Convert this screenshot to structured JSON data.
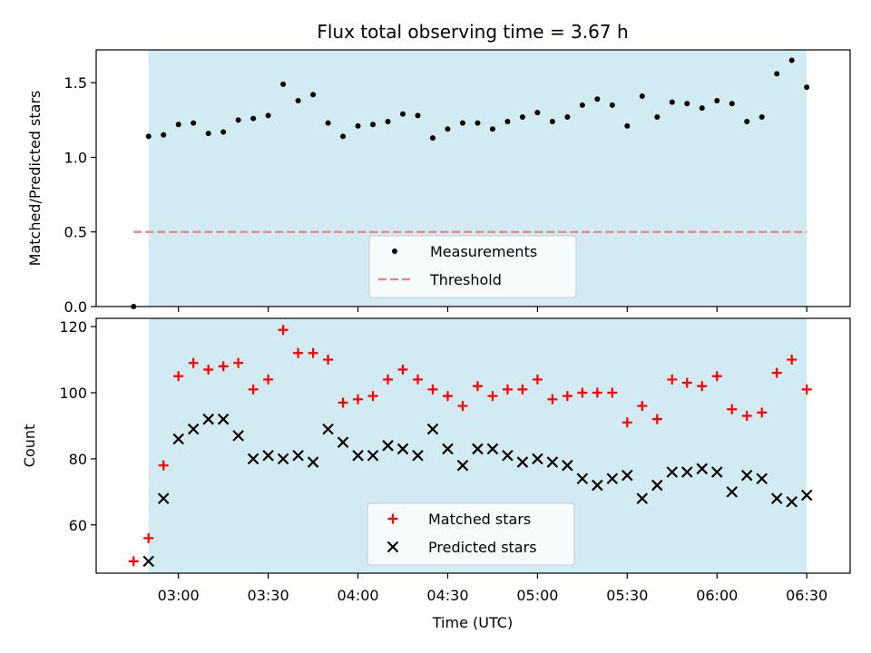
{
  "chart_data": {
    "title": "Flux total observing time = 3.67 h",
    "xlabel": "Time (UTC)",
    "x_ticks": [
      "03:00",
      "03:30",
      "04:00",
      "04:30",
      "05:00",
      "05:30",
      "06:00",
      "06:30"
    ],
    "observing_window": {
      "start": "02:50",
      "end": "06:30",
      "color": "#add8e6"
    },
    "panels": [
      {
        "type": "scatter",
        "ylabel": "Matched/Predicted stars",
        "ylim": [
          0,
          1.72
        ],
        "y_ticks": [
          "0.0",
          "0.5",
          "1.0",
          "1.5"
        ],
        "threshold": 0.5,
        "legend": {
          "placement": "lower center",
          "entries": [
            "Measurements",
            "Threshold"
          ]
        },
        "series": [
          {
            "name": "Measurements",
            "marker": "dot",
            "color": "#000000",
            "points": [
              [
                "02:45",
                0.0
              ],
              [
                "02:50",
                1.14
              ],
              [
                "02:55",
                1.15
              ],
              [
                "03:00",
                1.22
              ],
              [
                "03:05",
                1.23
              ],
              [
                "03:10",
                1.16
              ],
              [
                "03:15",
                1.17
              ],
              [
                "03:20",
                1.25
              ],
              [
                "03:25",
                1.26
              ],
              [
                "03:30",
                1.28
              ],
              [
                "03:35",
                1.49
              ],
              [
                "03:40",
                1.38
              ],
              [
                "03:45",
                1.42
              ],
              [
                "03:50",
                1.23
              ],
              [
                "03:55",
                1.14
              ],
              [
                "04:00",
                1.21
              ],
              [
                "04:05",
                1.22
              ],
              [
                "04:10",
                1.24
              ],
              [
                "04:15",
                1.29
              ],
              [
                "04:20",
                1.28
              ],
              [
                "04:25",
                1.13
              ],
              [
                "04:30",
                1.19
              ],
              [
                "04:35",
                1.23
              ],
              [
                "04:40",
                1.23
              ],
              [
                "04:45",
                1.19
              ],
              [
                "04:50",
                1.24
              ],
              [
                "04:55",
                1.27
              ],
              [
                "05:00",
                1.3
              ],
              [
                "05:05",
                1.24
              ],
              [
                "05:10",
                1.27
              ],
              [
                "05:15",
                1.35
              ],
              [
                "05:20",
                1.39
              ],
              [
                "05:25",
                1.35
              ],
              [
                "05:30",
                1.21
              ],
              [
                "05:35",
                1.41
              ],
              [
                "05:40",
                1.27
              ],
              [
                "05:45",
                1.37
              ],
              [
                "05:50",
                1.36
              ],
              [
                "05:55",
                1.33
              ],
              [
                "06:00",
                1.38
              ],
              [
                "06:05",
                1.36
              ],
              [
                "06:10",
                1.24
              ],
              [
                "06:15",
                1.27
              ],
              [
                "06:20",
                1.56
              ],
              [
                "06:25",
                1.65
              ],
              [
                "06:30",
                1.47
              ]
            ]
          },
          {
            "name": "Threshold",
            "marker": "dashed-line",
            "color": "#f08080",
            "points": [
              [
                "02:45",
                0.5
              ],
              [
                "06:30",
                0.5
              ]
            ]
          }
        ]
      },
      {
        "type": "scatter",
        "ylabel": "Count",
        "ylim": [
          45.4,
          122.5
        ],
        "y_ticks": [
          "60",
          "80",
          "100",
          "120"
        ],
        "legend": {
          "placement": "lower center",
          "entries": [
            "Matched stars",
            "Predicted stars"
          ]
        },
        "series": [
          {
            "name": "Matched stars",
            "marker": "plus",
            "color": "#ff0000",
            "points": [
              [
                "02:45",
                49
              ],
              [
                "02:50",
                56
              ],
              [
                "02:55",
                78
              ],
              [
                "03:00",
                105
              ],
              [
                "03:05",
                109
              ],
              [
                "03:10",
                107
              ],
              [
                "03:15",
                108
              ],
              [
                "03:20",
                109
              ],
              [
                "03:25",
                101
              ],
              [
                "03:30",
                104
              ],
              [
                "03:35",
                119
              ],
              [
                "03:40",
                112
              ],
              [
                "03:45",
                112
              ],
              [
                "03:50",
                110
              ],
              [
                "03:55",
                97
              ],
              [
                "04:00",
                98
              ],
              [
                "04:05",
                99
              ],
              [
                "04:10",
                104
              ],
              [
                "04:15",
                107
              ],
              [
                "04:20",
                104
              ],
              [
                "04:25",
                101
              ],
              [
                "04:30",
                99
              ],
              [
                "04:35",
                96
              ],
              [
                "04:40",
                102
              ],
              [
                "04:45",
                99
              ],
              [
                "04:50",
                101
              ],
              [
                "04:55",
                101
              ],
              [
                "05:00",
                104
              ],
              [
                "05:05",
                98
              ],
              [
                "05:10",
                99
              ],
              [
                "05:15",
                100
              ],
              [
                "05:20",
                100
              ],
              [
                "05:25",
                100
              ],
              [
                "05:30",
                91
              ],
              [
                "05:35",
                96
              ],
              [
                "05:40",
                92
              ],
              [
                "05:45",
                104
              ],
              [
                "05:50",
                103
              ],
              [
                "05:55",
                102
              ],
              [
                "06:00",
                105
              ],
              [
                "06:05",
                95
              ],
              [
                "06:10",
                93
              ],
              [
                "06:15",
                94
              ],
              [
                "06:20",
                106
              ],
              [
                "06:25",
                110
              ],
              [
                "06:30",
                101
              ]
            ]
          },
          {
            "name": "Predicted stars",
            "marker": "x",
            "color": "#000000",
            "points": [
              [
                "02:50",
                49
              ],
              [
                "02:55",
                68
              ],
              [
                "03:00",
                86
              ],
              [
                "03:05",
                89
              ],
              [
                "03:10",
                92
              ],
              [
                "03:15",
                92
              ],
              [
                "03:20",
                87
              ],
              [
                "03:25",
                80
              ],
              [
                "03:30",
                81
              ],
              [
                "03:35",
                80
              ],
              [
                "03:40",
                81
              ],
              [
                "03:45",
                79
              ],
              [
                "03:50",
                89
              ],
              [
                "03:55",
                85
              ],
              [
                "04:00",
                81
              ],
              [
                "04:05",
                81
              ],
              [
                "04:10",
                84
              ],
              [
                "04:15",
                83
              ],
              [
                "04:20",
                81
              ],
              [
                "04:25",
                89
              ],
              [
                "04:30",
                83
              ],
              [
                "04:35",
                78
              ],
              [
                "04:40",
                83
              ],
              [
                "04:45",
                83
              ],
              [
                "04:50",
                81
              ],
              [
                "04:55",
                79
              ],
              [
                "05:00",
                80
              ],
              [
                "05:05",
                79
              ],
              [
                "05:10",
                78
              ],
              [
                "05:15",
                74
              ],
              [
                "05:20",
                72
              ],
              [
                "05:25",
                74
              ],
              [
                "05:30",
                75
              ],
              [
                "05:35",
                68
              ],
              [
                "05:40",
                72
              ],
              [
                "05:45",
                76
              ],
              [
                "05:50",
                76
              ],
              [
                "05:55",
                77
              ],
              [
                "06:00",
                76
              ],
              [
                "06:05",
                70
              ],
              [
                "06:10",
                75
              ],
              [
                "06:15",
                74
              ],
              [
                "06:20",
                68
              ],
              [
                "06:25",
                67
              ],
              [
                "06:30",
                69
              ]
            ]
          }
        ]
      }
    ]
  }
}
